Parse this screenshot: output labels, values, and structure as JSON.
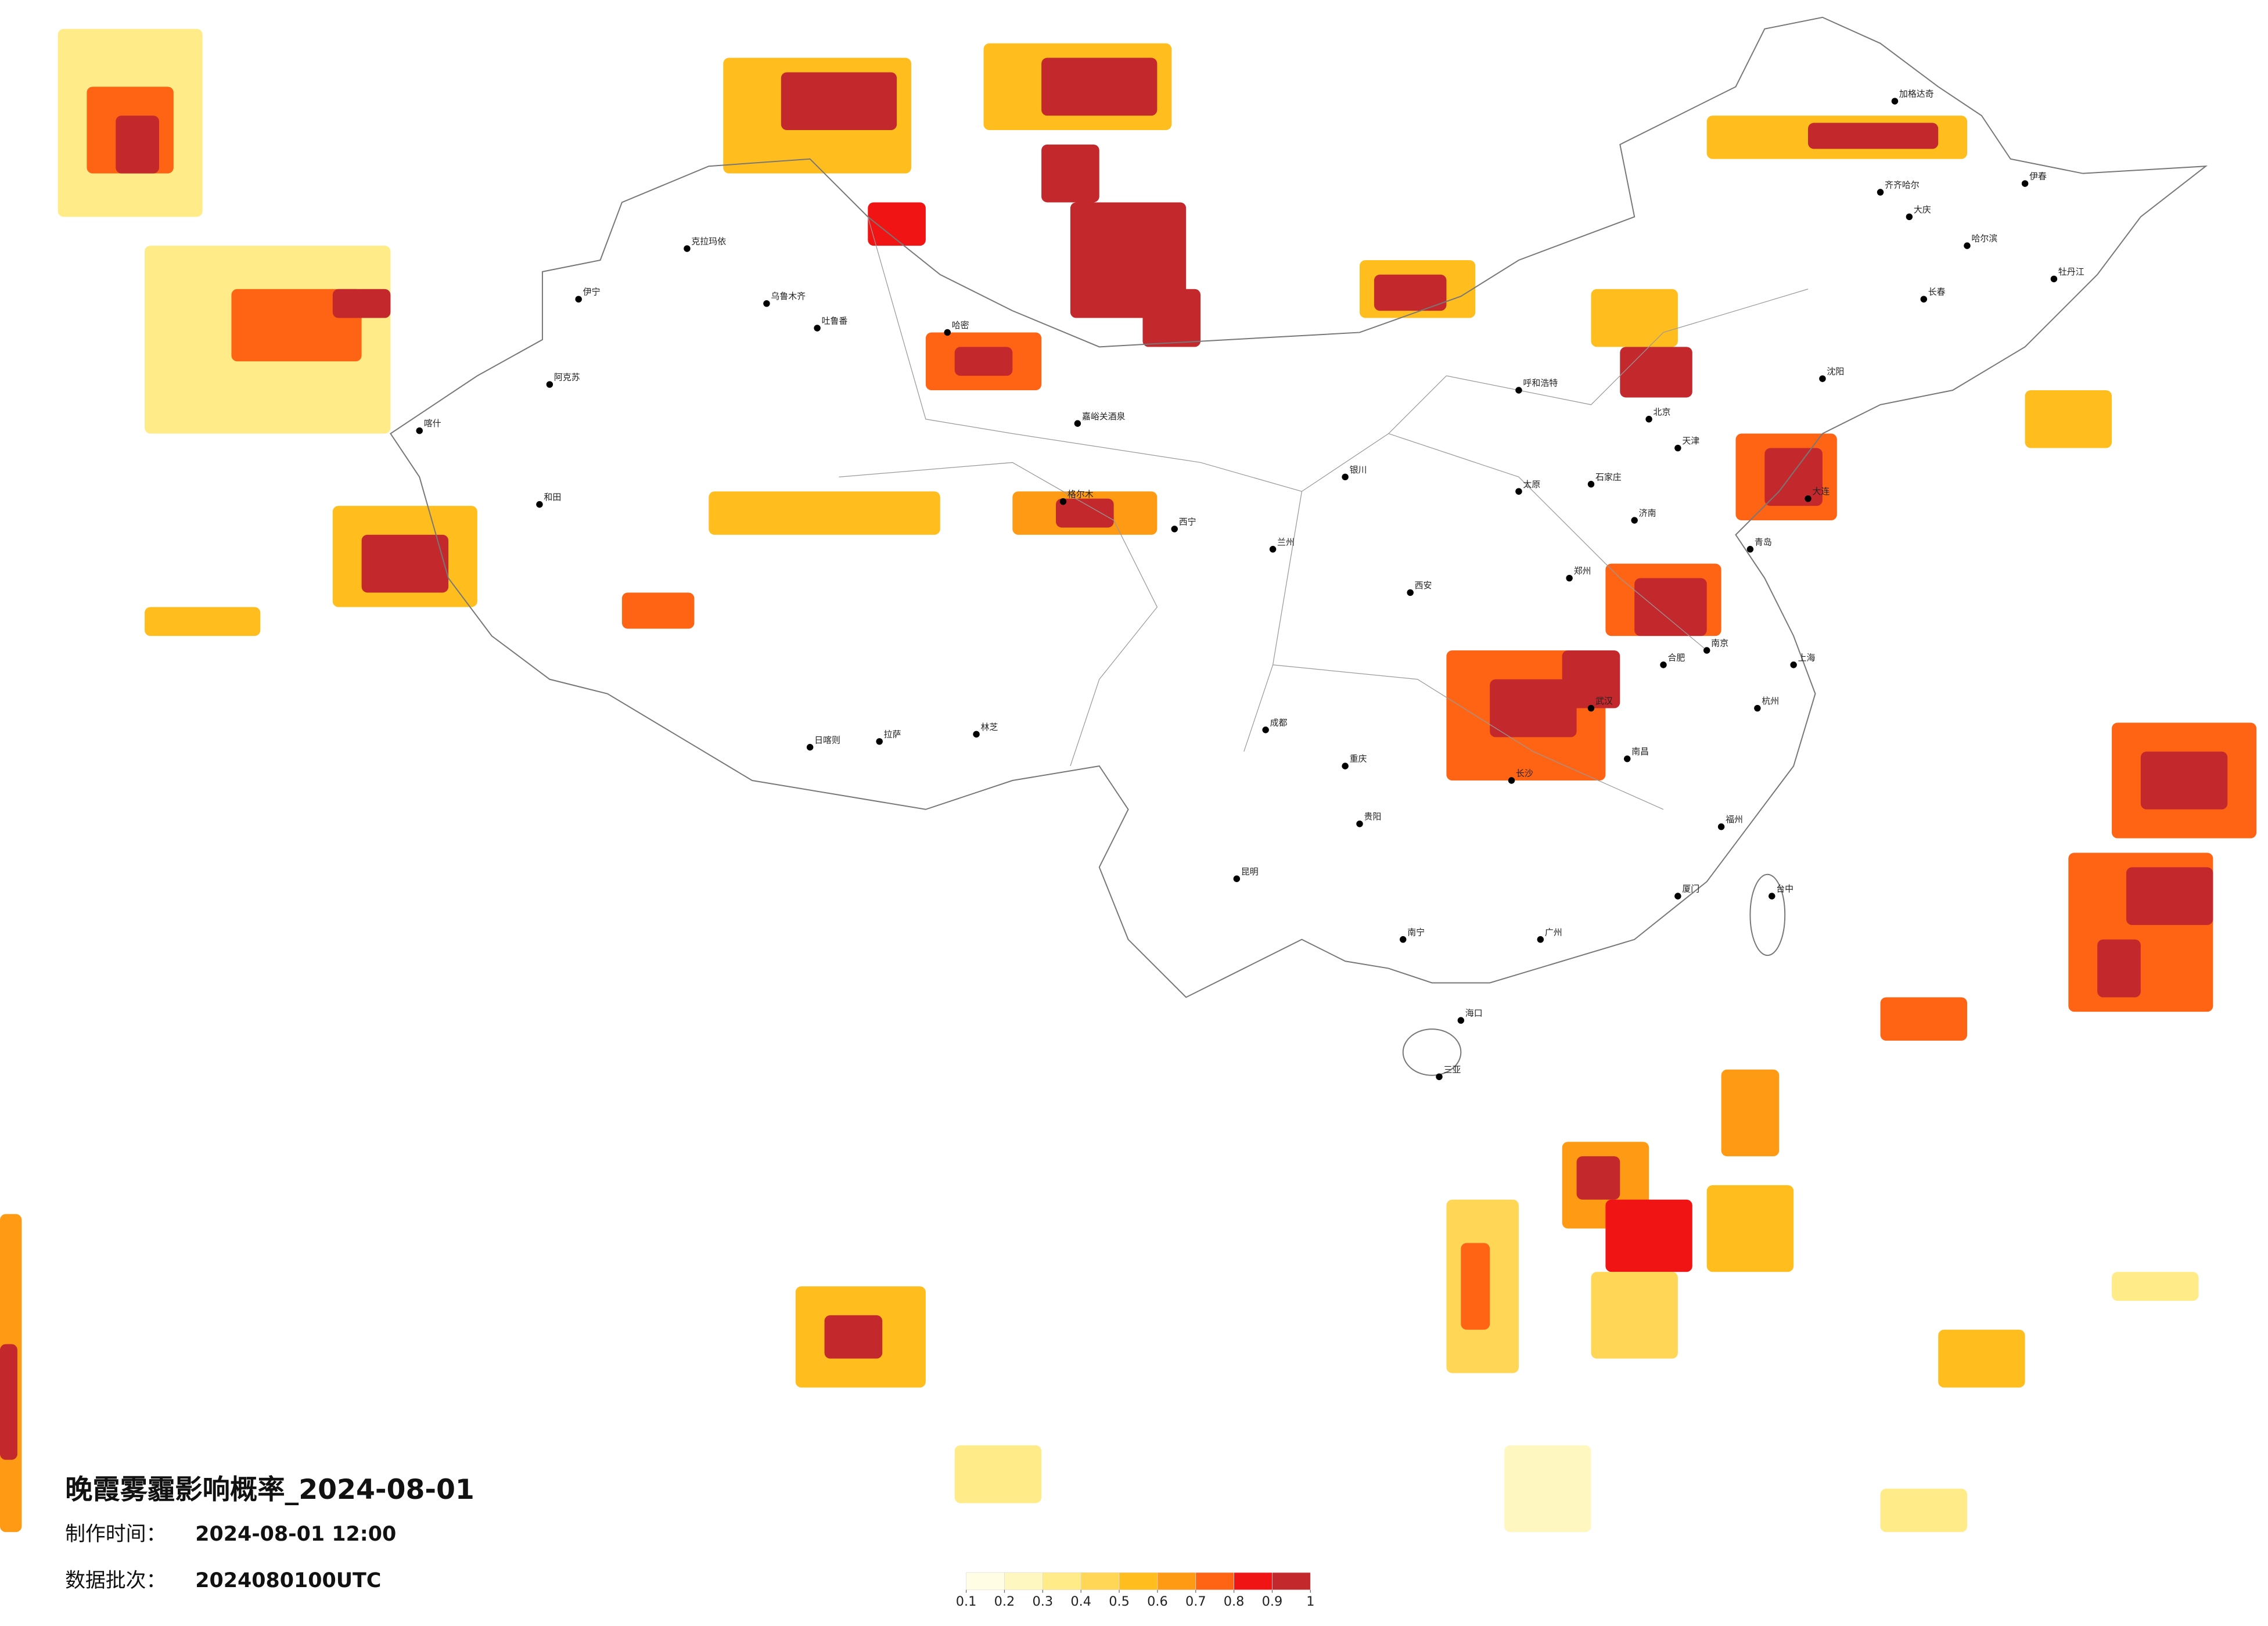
{
  "title": "晚霞雾霾影响概率_2024-08-01",
  "info": {
    "made_label": "制作时间：",
    "made_value": "2024-08-01 12:00",
    "batch_label": "数据批次：",
    "batch_value": "2024080100UTC"
  },
  "legend": {
    "ticks": [
      0.1,
      0.2,
      0.3,
      0.4,
      0.5,
      0.6,
      0.7,
      0.8,
      0.9,
      1
    ],
    "colors": [
      "#fffde3",
      "#fff6c0",
      "#ffec88",
      "#ffd656",
      "#ffbe1e",
      "#ff9a14",
      "#ff6414",
      "#f01414",
      "#c3282d"
    ]
  },
  "cities": [
    "克拉玛依",
    "伊宁",
    "乌鲁木齐",
    "吐鲁番",
    "阿克苏",
    "哈密",
    "喀什",
    "和田",
    "嘉峪关酒泉",
    "西宁",
    "格尔木",
    "拉萨",
    "日喀则",
    "林芝",
    "成都",
    "重庆",
    "昆明",
    "贵阳",
    "南宁",
    "海口",
    "广州",
    "长沙",
    "武汉",
    "南昌",
    "福州",
    "台中",
    "杭州",
    "上海",
    "南京",
    "合肥",
    "郑州",
    "济南",
    "北京",
    "天津",
    "石家庄",
    "太原",
    "西安",
    "兰州",
    "银川",
    "呼和浩特",
    "沈阳",
    "长春",
    "哈尔滨",
    "齐齐哈尔",
    "加格达奇",
    "伊春",
    "大庆",
    "牡丹江",
    "大连",
    "青岛",
    "厦门",
    "三亚"
  ]
}
